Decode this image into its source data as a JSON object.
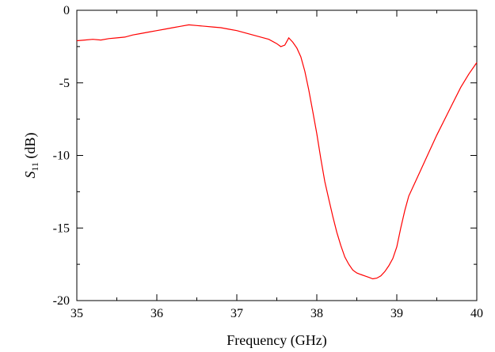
{
  "chart_data": {
    "type": "line",
    "xlabel": "Frequency (GHz)",
    "ylabel_main": "S",
    "ylabel_sub": "11",
    "ylabel_suffix": " (dB)",
    "xlim": [
      35,
      40
    ],
    "ylim": [
      -20,
      0
    ],
    "xticks": [
      35,
      36,
      37,
      38,
      39,
      40
    ],
    "yticks": [
      0,
      -5,
      -10,
      -15,
      -20
    ],
    "xtick_labels": [
      "35",
      "36",
      "37",
      "38",
      "39",
      "40"
    ],
    "ytick_labels": [
      "0",
      "-5",
      "-10",
      "-15",
      "-20"
    ],
    "grid": false,
    "series": [
      {
        "color": "#ff0000",
        "x": [
          35.0,
          35.1,
          35.2,
          35.3,
          35.4,
          35.5,
          35.6,
          35.7,
          35.8,
          35.9,
          36.0,
          36.1,
          36.2,
          36.3,
          36.4,
          36.5,
          36.6,
          36.7,
          36.8,
          36.9,
          37.0,
          37.1,
          37.2,
          37.3,
          37.4,
          37.5,
          37.55,
          37.6,
          37.65,
          37.7,
          37.75,
          37.8,
          37.85,
          37.9,
          37.95,
          38.0,
          38.05,
          38.1,
          38.15,
          38.2,
          38.25,
          38.3,
          38.35,
          38.4,
          38.45,
          38.5,
          38.55,
          38.6,
          38.65,
          38.7,
          38.75,
          38.8,
          38.85,
          38.9,
          38.95,
          39.0,
          39.05,
          39.1,
          39.15,
          39.2,
          39.3,
          39.4,
          39.5,
          39.6,
          39.7,
          39.8,
          39.9,
          40.0
        ],
        "y": [
          -2.1,
          -2.05,
          -2.0,
          -2.05,
          -1.95,
          -1.9,
          -1.85,
          -1.7,
          -1.6,
          -1.5,
          -1.4,
          -1.3,
          -1.2,
          -1.1,
          -1.0,
          -1.05,
          -1.1,
          -1.15,
          -1.2,
          -1.3,
          -1.4,
          -1.55,
          -1.7,
          -1.85,
          -2.0,
          -2.3,
          -2.5,
          -2.4,
          -1.9,
          -2.2,
          -2.6,
          -3.2,
          -4.2,
          -5.5,
          -7.0,
          -8.5,
          -10.2,
          -11.8,
          -13.0,
          -14.2,
          -15.3,
          -16.2,
          -17.0,
          -17.5,
          -17.9,
          -18.1,
          -18.2,
          -18.3,
          -18.4,
          -18.5,
          -18.45,
          -18.3,
          -18.0,
          -17.6,
          -17.1,
          -16.3,
          -15.0,
          -13.8,
          -12.8,
          -12.2,
          -11.0,
          -9.8,
          -8.6,
          -7.5,
          -6.4,
          -5.3,
          -4.4,
          -3.6
        ]
      }
    ]
  }
}
